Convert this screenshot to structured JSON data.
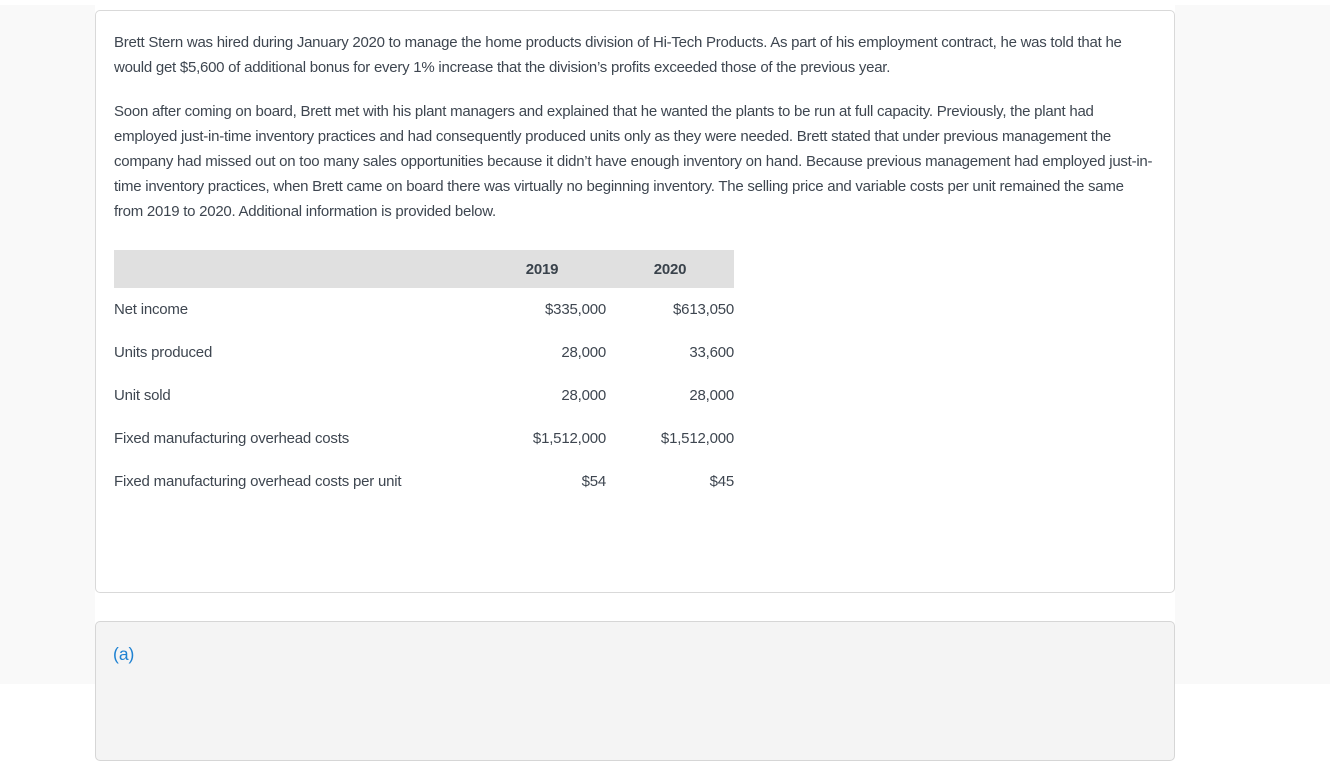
{
  "question": {
    "paragraph1": "Brett Stern was hired during January 2020 to manage the home products division of Hi-Tech Products. As part of his employment contract, he was told that he would get $5,600 of additional bonus for every 1% increase that the division’s profits exceeded those of the previous year.",
    "paragraph2": "Soon after coming on board, Brett met with his plant managers and explained that he wanted the plants to be run at full capacity. Previously, the plant had employed just-in-time inventory practices and had consequently produced units only as they were needed. Brett stated that under previous management the company had missed out on too many sales opportunities because it didn’t have enough inventory on hand. Because previous management had employed just-in-time inventory practices, when Brett came on board there was virtually no beginning inventory. The selling price and variable costs per unit remained the same from 2019 to 2020. Additional information is provided below."
  },
  "table": {
    "columns": [
      "2019",
      "2020"
    ],
    "rows": [
      {
        "label": "Net income",
        "y2019": "$335,000",
        "y2020": "$613,050"
      },
      {
        "label": "Units produced",
        "y2019": "28,000",
        "y2020": "33,600"
      },
      {
        "label": "Unit sold",
        "y2019": "28,000",
        "y2020": "28,000"
      },
      {
        "label": "Fixed manufacturing overhead costs",
        "y2019": "$1,512,000",
        "y2020": "$1,512,000"
      },
      {
        "label": "Fixed manufacturing overhead costs per unit",
        "y2019": "$54",
        "y2020": "$45"
      }
    ]
  },
  "answer_section": {
    "part_label": "(a)"
  },
  "colors": {
    "accent_blue": "#1f82d2",
    "body_text": "#3e4650",
    "table_header_bg": "#e0e0e0",
    "page_bg": "#f9f9f9",
    "card_bg": "#ffffff",
    "card_border": "#d9d9d9",
    "answer_card_bg": "#f4f4f4"
  }
}
